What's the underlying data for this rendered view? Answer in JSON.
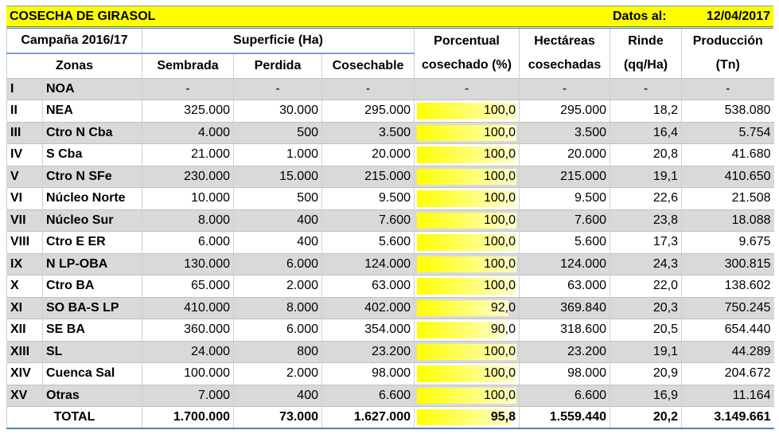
{
  "title": "COSECHA DE GIRASOL",
  "datos_label": "Datos al:",
  "datos_value": "12/04/2017",
  "header": {
    "campana": "Campaña 2016/17",
    "superficie": "Superficie (Ha)",
    "zonas": "Zonas",
    "sembrada": "Sembrada",
    "perdida": "Perdida",
    "cosechable": "Cosechable",
    "porc1": "Porcentual",
    "porc2": "cosechado (%)",
    "hect1": "Hectáreas",
    "hect2": "cosechadas",
    "rinde1": "Rinde",
    "rinde2": "(qq/Ha)",
    "prod1": "Producción",
    "prod2": "(Tn)"
  },
  "rows": [
    {
      "num": "I",
      "zona": "NOA",
      "sembrada": "-",
      "perdida": "-",
      "cosechable": "-",
      "porc": "-",
      "pct": 0,
      "hect": "-",
      "rinde": "-",
      "prod": "-"
    },
    {
      "num": "II",
      "zona": "NEA",
      "sembrada": "325.000",
      "perdida": "30.000",
      "cosechable": "295.000",
      "porc": "100,0",
      "pct": 100,
      "hect": "295.000",
      "rinde": "18,2",
      "prod": "538.080"
    },
    {
      "num": "III",
      "zona": "Ctro N Cba",
      "sembrada": "4.000",
      "perdida": "500",
      "cosechable": "3.500",
      "porc": "100,0",
      "pct": 100,
      "hect": "3.500",
      "rinde": "16,4",
      "prod": "5.754"
    },
    {
      "num": "IV",
      "zona": "S Cba",
      "sembrada": "21.000",
      "perdida": "1.000",
      "cosechable": "20.000",
      "porc": "100,0",
      "pct": 100,
      "hect": "20.000",
      "rinde": "20,8",
      "prod": "41.680"
    },
    {
      "num": "V",
      "zona": "Ctro N SFe",
      "sembrada": "230.000",
      "perdida": "15.000",
      "cosechable": "215.000",
      "porc": "100,0",
      "pct": 100,
      "hect": "215.000",
      "rinde": "19,1",
      "prod": "410.650"
    },
    {
      "num": "VI",
      "zona": "Núcleo Norte",
      "sembrada": "10.000",
      "perdida": "500",
      "cosechable": "9.500",
      "porc": "100,0",
      "pct": 100,
      "hect": "9.500",
      "rinde": "22,6",
      "prod": "21.508"
    },
    {
      "num": "VII",
      "zona": "Núcleo Sur",
      "sembrada": "8.000",
      "perdida": "400",
      "cosechable": "7.600",
      "porc": "100,0",
      "pct": 100,
      "hect": "7.600",
      "rinde": "23,8",
      "prod": "18.088"
    },
    {
      "num": "VIII",
      "zona": "Ctro E ER",
      "sembrada": "6.000",
      "perdida": "400",
      "cosechable": "5.600",
      "porc": "100,0",
      "pct": 100,
      "hect": "5.600",
      "rinde": "17,3",
      "prod": "9.675"
    },
    {
      "num": "IX",
      "zona": "N LP-OBA",
      "sembrada": "130.000",
      "perdida": "6.000",
      "cosechable": "124.000",
      "porc": "100,0",
      "pct": 100,
      "hect": "124.000",
      "rinde": "24,3",
      "prod": "300.815"
    },
    {
      "num": "X",
      "zona": "Ctro BA",
      "sembrada": "65.000",
      "perdida": "2.000",
      "cosechable": "63.000",
      "porc": "100,0",
      "pct": 100,
      "hect": "63.000",
      "rinde": "22,0",
      "prod": "138.602"
    },
    {
      "num": "XI",
      "zona": "SO BA-S LP",
      "sembrada": "410.000",
      "perdida": "8.000",
      "cosechable": "402.000",
      "porc": "92,0",
      "pct": 92,
      "hect": "369.840",
      "rinde": "20,3",
      "prod": "750.245"
    },
    {
      "num": "XII",
      "zona": "SE BA",
      "sembrada": "360.000",
      "perdida": "6.000",
      "cosechable": "354.000",
      "porc": "90,0",
      "pct": 90,
      "hect": "318.600",
      "rinde": "20,5",
      "prod": "654.440"
    },
    {
      "num": "XIII",
      "zona": "SL",
      "sembrada": "24.000",
      "perdida": "800",
      "cosechable": "23.200",
      "porc": "100,0",
      "pct": 100,
      "hect": "23.200",
      "rinde": "19,1",
      "prod": "44.289"
    },
    {
      "num": "XIV",
      "zona": "Cuenca Sal",
      "sembrada": "100.000",
      "perdida": "2.000",
      "cosechable": "98.000",
      "porc": "100,0",
      "pct": 100,
      "hect": "98.000",
      "rinde": "20,9",
      "prod": "204.672"
    },
    {
      "num": "XV",
      "zona": "Otras",
      "sembrada": "7.000",
      "perdida": "400",
      "cosechable": "6.600",
      "porc": "100,0",
      "pct": 100,
      "hect": "6.600",
      "rinde": "16,9",
      "prod": "11.164"
    }
  ],
  "total": {
    "label": "TOTAL",
    "sembrada": "1.700.000",
    "perdida": "73.000",
    "cosechable": "1.627.000",
    "porc": "95,8",
    "pct": 95.8,
    "hect": "1.559.440",
    "rinde": "20,2",
    "prod": "3.149.661"
  }
}
